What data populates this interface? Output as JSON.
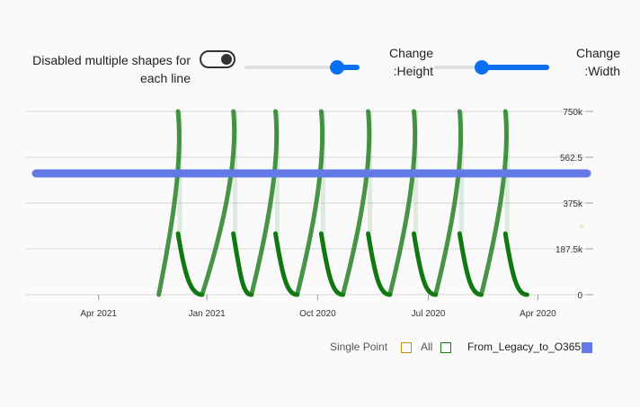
{
  "controls": {
    "toggle_label": "Disabled multiple shapes for each line",
    "toggle_on": true,
    "height_label": "Change :Height",
    "width_label": "Change :Width",
    "height_slider_value": 0.85,
    "width_slider_value": 0.4
  },
  "chart_data": {
    "type": "line",
    "x_axis": {
      "reversed": true,
      "ticks": [
        "Apr 2021",
        "Jan 2021",
        "Oct 2020",
        "Jul 2020",
        "Apr 2020"
      ]
    },
    "y_axis": {
      "position": "right",
      "range": [
        0,
        750000
      ],
      "ticks": [
        "750k",
        "562.5",
        "375k",
        "187.5k",
        "0"
      ]
    },
    "grid": true,
    "legend_position": "bottom-right",
    "series": [
      {
        "name": "Single Point",
        "color": "#b8960c",
        "points": []
      },
      {
        "name": "All",
        "color": "#1a7a1a",
        "shape": "sawtooth",
        "cycles": [
          {
            "start": "2021-02-10",
            "peak": "2021-01-25",
            "drop": "2021-01-25",
            "end": "2021-01-05"
          },
          {
            "start": "2021-01-05",
            "peak": "2020-12-10",
            "drop": "2020-12-10",
            "end": "2020-11-25"
          },
          {
            "start": "2020-11-25",
            "peak": "2020-11-05",
            "drop": "2020-11-05",
            "end": "2020-10-18"
          },
          {
            "start": "2020-10-18",
            "peak": "2020-09-28",
            "drop": "2020-09-28",
            "end": "2020-09-10"
          },
          {
            "start": "2020-09-10",
            "peak": "2020-08-20",
            "drop": "2020-08-20",
            "end": "2020-08-02"
          },
          {
            "start": "2020-08-02",
            "peak": "2020-07-13",
            "drop": "2020-07-13",
            "end": "2020-06-25"
          },
          {
            "start": "2020-06-25",
            "peak": "2020-06-05",
            "drop": "2020-06-05",
            "end": "2020-05-18"
          },
          {
            "start": "2020-05-18",
            "peak": "2020-04-28",
            "drop": "2020-04-28",
            "end": "2020-04-10"
          }
        ],
        "peak_value": 750000,
        "drop_value": 250000,
        "base_value": 0
      },
      {
        "name": "From_Legacy_to_O365",
        "color": "#6279e6",
        "value": 500000
      }
    ]
  }
}
